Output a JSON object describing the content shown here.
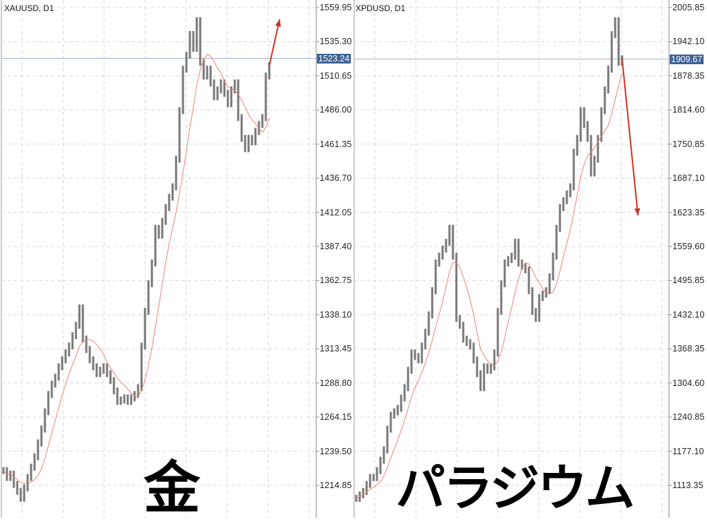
{
  "chart_data": [
    {
      "type": "ohlc-line",
      "symbol": "XAUUSD, D1",
      "overlay_label": "金",
      "y_ticks": [
        "1559.95",
        "1535.30",
        "1510.65",
        "1486.00",
        "1461.35",
        "1436.70",
        "1412.05",
        "1387.40",
        "1362.75",
        "1338.10",
        "1313.45",
        "1288.80",
        "1264.15",
        "1239.50",
        "1214.85"
      ],
      "ylim": [
        1202.5,
        1565.5
      ],
      "current_price": "1523.24",
      "grid": true,
      "arrow_direction": "up",
      "closes": [
        1225.5,
        1220.5,
        1223,
        1215.5,
        1210.5,
        1205.5,
        1213,
        1220.5,
        1228,
        1235.5,
        1245.5,
        1255.5,
        1268,
        1280.5,
        1288,
        1293,
        1300.5,
        1305.5,
        1310.5,
        1315.5,
        1323,
        1330.5,
        1343,
        1320.5,
        1313,
        1305.5,
        1300.5,
        1295.5,
        1298,
        1300.5,
        1295.5,
        1290.5,
        1283,
        1275.5,
        1276.5,
        1278,
        1275.5,
        1278,
        1280.5,
        1285.5,
        1315.5,
        1340.5,
        1360.5,
        1375.5,
        1400.5,
        1395.5,
        1405.5,
        1415.5,
        1423,
        1430.5,
        1450.5,
        1485.5,
        1515.5,
        1525.5,
        1540.5,
        1530.5,
        1550.5,
        1520.5,
        1510.5,
        1515.5,
        1505.5,
        1495.5,
        1500.5,
        1505.5,
        1498,
        1490.5,
        1500.5,
        1505.5,
        1480.5,
        1465.5,
        1458,
        1465.5,
        1463,
        1470.5,
        1475.5,
        1480.5,
        1510.5,
        1518
      ]
    },
    {
      "type": "ohlc-line",
      "symbol": "XPDUSD, D1",
      "overlay_label": "パラジウム",
      "y_ticks": [
        "2005.85",
        "1942.10",
        "1878.35",
        "1814.60",
        "1750.85",
        "1687.10",
        "1623.35",
        "1559.60",
        "1495.85",
        "1432.10",
        "1368.35",
        "1304.60",
        "1240.85",
        "1177.10",
        "1113.35"
      ],
      "ylim": [
        1066,
        2019
      ],
      "current_price": "1909.67",
      "grid": true,
      "arrow_direction": "down",
      "closes": [
        1089,
        1095.5,
        1102,
        1115,
        1128,
        1128,
        1140.8,
        1160.3,
        1179.6,
        1218.4,
        1244.2,
        1250.7,
        1257.1,
        1276.5,
        1295.9,
        1328.2,
        1360.6,
        1354.1,
        1347.7,
        1373.5,
        1399.4,
        1431.7,
        1477,
        1528.7,
        1541.6,
        1554.6,
        1567.5,
        1593.4,
        1541.6,
        1425.2,
        1412.3,
        1386.4,
        1380,
        1373.5,
        1347.7,
        1321.8,
        1295.9,
        1334.7,
        1328.2,
        1334.7,
        1360.6,
        1438.2,
        1489.9,
        1528.7,
        1535.2,
        1541.6,
        1567.5,
        1528.7,
        1522.3,
        1515.8,
        1477,
        1438.2,
        1425.2,
        1464,
        1470.5,
        1477,
        1502.9,
        1541.6,
        1593.4,
        1632.1,
        1645.1,
        1658,
        1671,
        1735.6,
        1761.5,
        1813.2,
        1787.4,
        1761.5,
        1696.8,
        1722.7,
        1761.5,
        1813.2,
        1852,
        1890.8,
        1955.5,
        1981.3,
        1903.7,
        1910.3
      ]
    }
  ],
  "colors": {
    "bars": "#777777",
    "ma": "#f08070",
    "arrow": "#d0311f",
    "current": "#3d6193",
    "grid": "#d8d8d8"
  }
}
